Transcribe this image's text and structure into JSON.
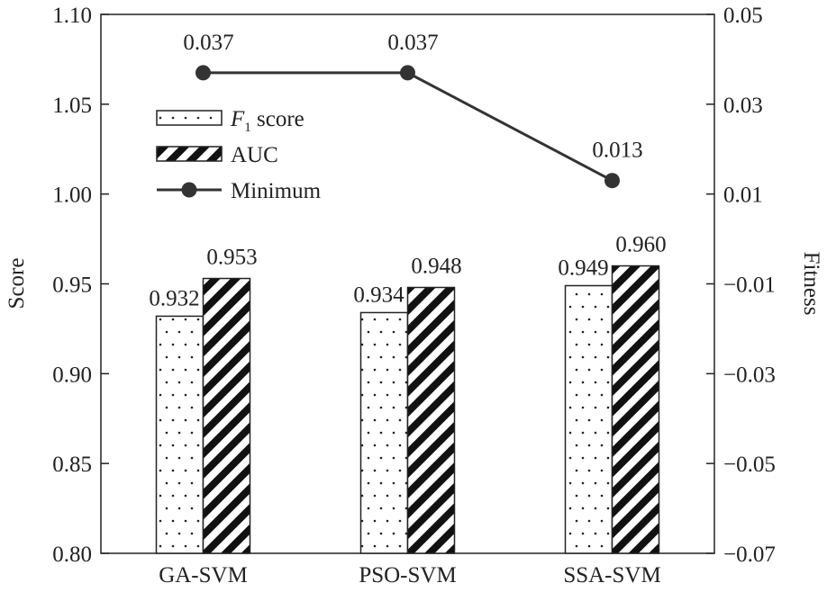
{
  "chart_data": {
    "type": "bar",
    "categories": [
      "GA-SVM",
      "PSO-SVM",
      "SSA-SVM"
    ],
    "series": [
      {
        "name": "F1 score",
        "values": [
          0.932,
          0.934,
          0.949
        ],
        "labels": [
          "0.932",
          "0.934",
          "0.949"
        ],
        "pattern": "dots"
      },
      {
        "name": "AUC",
        "values": [
          0.953,
          0.948,
          0.96
        ],
        "labels": [
          "0.953",
          "0.948",
          "0.960"
        ],
        "pattern": "diagonal-stripes"
      }
    ],
    "line_series": {
      "name": "Minimum",
      "axis": "right",
      "values": [
        0.037,
        0.037,
        0.013
      ],
      "labels": [
        "0.037",
        "0.037",
        "0.013"
      ]
    },
    "ylabel": "Score",
    "ylim": [
      0.8,
      1.1
    ],
    "yticks": [
      "0.80",
      "0.85",
      "0.90",
      "0.95",
      "1.00",
      "1.05",
      "1.10"
    ],
    "y2label": "Fitness",
    "y2lim": [
      -0.07,
      0.05
    ],
    "y2ticks": [
      "−0.07",
      "−0.05",
      "−0.03",
      "−0.01",
      "0.01",
      "0.03",
      "0.05"
    ],
    "legend": {
      "position": "top-left",
      "entries": [
        {
          "main": "F",
          "sub": "1",
          "rest": " score"
        },
        {
          "main": "AUC",
          "sub": "",
          "rest": ""
        },
        {
          "main": "Minimum",
          "sub": "",
          "rest": ""
        }
      ]
    },
    "grid": false,
    "colors": {
      "line": "#333333",
      "bar_stroke": "#222222",
      "fill": "#ffffff"
    }
  }
}
